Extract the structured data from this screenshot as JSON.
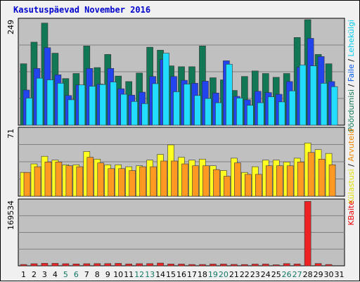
{
  "title": "Kasutuspäevad November 2016",
  "colors": {
    "title": "#0000cc",
    "plot_bg": "#c0c0c0",
    "grid": "#808080",
    "weekend_day": "#117766",
    "weekday_day": "#000000"
  },
  "right_labels": {
    "separator": " / ",
    "top": [
      {
        "text": "Pöördumisi",
        "color": "#117755"
      },
      {
        "text": "Faile",
        "color": "#0055ee"
      },
      {
        "text": "Lehekülgi",
        "color": "#00ccee"
      }
    ],
    "middle": [
      {
        "text": "Külastusi",
        "color": "#dddd00"
      },
      {
        "text": "Arvuteid",
        "color": "#ee8800"
      }
    ],
    "bottom": [
      {
        "text": "KBaite",
        "color": "#ee0000"
      }
    ]
  },
  "chart_data": {
    "type": "bar",
    "x": [
      1,
      2,
      3,
      4,
      5,
      6,
      7,
      8,
      9,
      10,
      11,
      12,
      13,
      14,
      15,
      16,
      17,
      18,
      19,
      20,
      21,
      22,
      23,
      24,
      25,
      26,
      27,
      28,
      29,
      30,
      31
    ],
    "weekend_days": [
      5,
      6,
      12,
      13,
      19,
      20,
      26,
      27
    ],
    "panels": [
      {
        "id": "hits",
        "y_tick": "249",
        "ymax": 249,
        "series": [
          {
            "name": "Pöördumisi",
            "color": "#117755",
            "values": [
              145,
              196,
              241,
              170,
              110,
              122,
              187,
              136,
              167,
              116,
              103,
              123,
              184,
              177,
              140,
              138,
              138,
              187,
              112,
              107,
              82,
              115,
              128,
              122,
              113,
              122,
              207,
              249,
              167,
              145,
              0
            ]
          },
          {
            "name": "Faile",
            "color": "#2244ee",
            "values": [
              83,
              134,
              183,
              119,
              70,
              95,
              134,
              97,
              134,
              86,
              71,
              78,
              115,
              155,
              115,
              106,
              99,
              104,
              76,
              152,
              68,
              60,
              80,
              77,
              73,
              103,
              137,
              205,
              162,
              103,
              0
            ]
          },
          {
            "name": "Lehekülgi",
            "color": "#22ddff",
            "values": [
              64,
              111,
              107,
              99,
              60,
              95,
              92,
              96,
              102,
              73,
              56,
              51,
              98,
              170,
              79,
              97,
              70,
              63,
              53,
              144,
              64,
              47,
              53,
              67,
              55,
              81,
              142,
              140,
              99,
              91,
              0
            ]
          }
        ]
      },
      {
        "id": "visits",
        "y_tick": "71",
        "ymax": 71,
        "series": [
          {
            "name": "Külastusi",
            "color": "#ffff22",
            "values": [
              25,
              34,
              42,
              38,
              33,
              33,
              47,
              39,
              33,
              33,
              31,
              32,
              38,
              44,
              54,
              41,
              38,
              39,
              32,
              27,
              40,
              25,
              31,
              38,
              38,
              36,
              40,
              56,
              49,
              45,
              0
            ]
          },
          {
            "name": "Arvuteid",
            "color": "#ff9922",
            "values": [
              25,
              31,
              36,
              36,
              32,
              31,
              41,
              35,
              29,
              29,
              27,
              31,
              31,
              37,
              37,
              34,
              32,
              32,
              28,
              21,
              35,
              23,
              23,
              32,
              32,
              32,
              36,
              46,
              39,
              33,
              0
            ]
          }
        ]
      },
      {
        "id": "kbytes",
        "y_tick": "169534",
        "ymax": 169534,
        "series": [
          {
            "name": "KBaite",
            "color": "#ee2222",
            "values": [
              3500,
              5500,
              6500,
              6400,
              5500,
              4900,
              5500,
              5800,
              5800,
              6400,
              4800,
              5600,
              5800,
              7200,
              4800,
              4600,
              3500,
              3500,
              4600,
              4600,
              3700,
              3400,
              4500,
              4600,
              2700,
              5800,
              4800,
              167000,
              6000,
              3500,
              0
            ]
          }
        ]
      }
    ]
  }
}
